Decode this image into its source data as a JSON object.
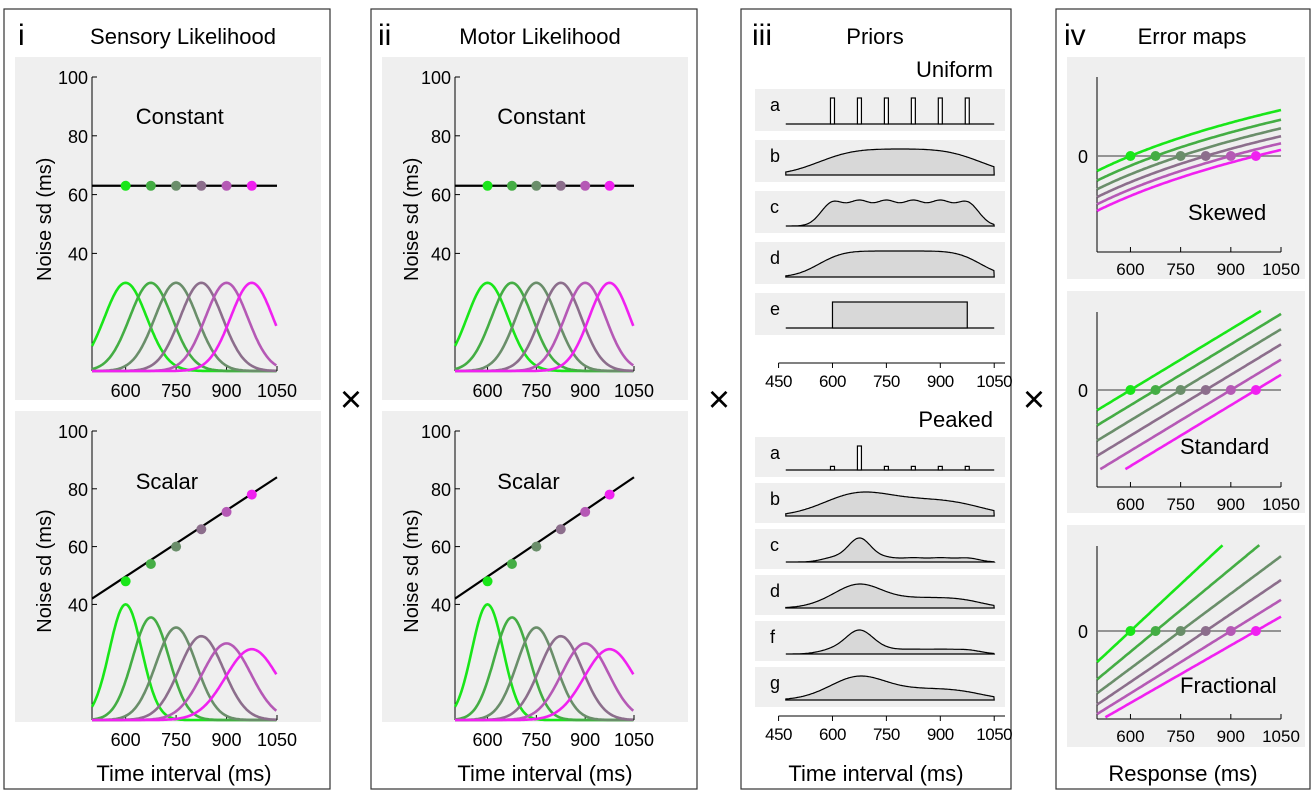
{
  "times_symbol": "×",
  "panels": {
    "i": {
      "numeral": "i",
      "title": "Sensory Likelihood",
      "xlabel": "Time interval (ms)"
    },
    "ii": {
      "numeral": "ii",
      "title": "Motor Likelihood",
      "xlabel": "Time interval (ms)"
    },
    "iii": {
      "numeral": "iii",
      "title": "Priors",
      "xlabel": "Time interval (ms)"
    },
    "iv": {
      "numeral": "iv",
      "title": "Error maps",
      "xlabel": "Response (ms)"
    }
  },
  "colors": [
    "#19e619",
    "#44ad44",
    "#6a8e6a",
    "#8c6e8c",
    "#b559b5",
    "#f021f0"
  ],
  "chart_data": [
    {
      "id": "sensory-constant",
      "type": "line",
      "panel": "i",
      "label": "Constant",
      "ylabel": "Noise sd (ms)",
      "yticks": [
        40,
        60,
        80,
        100
      ],
      "xticks": [
        600,
        750,
        900,
        1050
      ],
      "ylim": [
        0,
        100
      ],
      "xlim": [
        500,
        1050
      ],
      "line": [
        {
          "x": 500,
          "y": 63
        },
        {
          "x": 1050,
          "y": 63
        }
      ],
      "points": [
        {
          "x": 600,
          "y": 63
        },
        {
          "x": 675,
          "y": 63
        },
        {
          "x": 750,
          "y": 63
        },
        {
          "x": 825,
          "y": 63
        },
        {
          "x": 900,
          "y": 63
        },
        {
          "x": 975,
          "y": 63
        }
      ],
      "gaussians": {
        "means": [
          600,
          675,
          750,
          825,
          900,
          975
        ],
        "sd": [
          63,
          63,
          63,
          63,
          63,
          63
        ],
        "peak": [
          30,
          30,
          30,
          30,
          30,
          30
        ]
      }
    },
    {
      "id": "sensory-scalar",
      "type": "line",
      "panel": "i",
      "label": "Scalar",
      "ylabel": "Noise sd (ms)",
      "yticks": [
        40,
        60,
        80,
        100
      ],
      "xticks": [
        600,
        750,
        900,
        1050
      ],
      "ylim": [
        0,
        100
      ],
      "xlim": [
        500,
        1050
      ],
      "line": [
        {
          "x": 500,
          "y": 42
        },
        {
          "x": 1050,
          "y": 84
        }
      ],
      "points": [
        {
          "x": 600,
          "y": 48
        },
        {
          "x": 675,
          "y": 54
        },
        {
          "x": 750,
          "y": 60
        },
        {
          "x": 825,
          "y": 66
        },
        {
          "x": 900,
          "y": 72
        },
        {
          "x": 975,
          "y": 78
        }
      ],
      "gaussians": {
        "means": [
          600,
          675,
          750,
          825,
          900,
          975
        ],
        "sd": [
          48,
          54,
          60,
          66,
          72,
          78
        ],
        "peak": [
          40,
          35.5,
          32,
          29,
          26.5,
          24.5
        ]
      }
    },
    {
      "id": "motor-constant",
      "type": "line",
      "panel": "ii",
      "label": "Constant",
      "ylabel": "Noise sd (ms)",
      "yticks": [
        40,
        60,
        80,
        100
      ],
      "xticks": [
        600,
        750,
        900,
        1050
      ],
      "ylim": [
        0,
        100
      ],
      "xlim": [
        500,
        1050
      ],
      "line": [
        {
          "x": 500,
          "y": 63
        },
        {
          "x": 1050,
          "y": 63
        }
      ],
      "points": [
        {
          "x": 600,
          "y": 63
        },
        {
          "x": 675,
          "y": 63
        },
        {
          "x": 750,
          "y": 63
        },
        {
          "x": 825,
          "y": 63
        },
        {
          "x": 900,
          "y": 63
        },
        {
          "x": 975,
          "y": 63
        }
      ],
      "gaussians": {
        "means": [
          600,
          675,
          750,
          825,
          900,
          975
        ],
        "sd": [
          63,
          63,
          63,
          63,
          63,
          63
        ],
        "peak": [
          30,
          30,
          30,
          30,
          30,
          30
        ]
      }
    },
    {
      "id": "motor-scalar",
      "type": "line",
      "panel": "ii",
      "label": "Scalar",
      "ylabel": "Noise sd (ms)",
      "yticks": [
        40,
        60,
        80,
        100
      ],
      "xticks": [
        600,
        750,
        900,
        1050
      ],
      "ylim": [
        0,
        100
      ],
      "xlim": [
        500,
        1050
      ],
      "line": [
        {
          "x": 500,
          "y": 42
        },
        {
          "x": 1050,
          "y": 84
        }
      ],
      "points": [
        {
          "x": 600,
          "y": 48
        },
        {
          "x": 675,
          "y": 54
        },
        {
          "x": 750,
          "y": 60
        },
        {
          "x": 825,
          "y": 66
        },
        {
          "x": 900,
          "y": 72
        },
        {
          "x": 975,
          "y": 78
        }
      ],
      "gaussians": {
        "means": [
          600,
          675,
          750,
          825,
          900,
          975
        ],
        "sd": [
          48,
          54,
          60,
          66,
          72,
          78
        ],
        "peak": [
          40,
          35.5,
          32,
          29,
          26.5,
          24.5
        ]
      }
    },
    {
      "id": "priors-uniform",
      "type": "area",
      "panel": "iii",
      "label": "Uniform",
      "xticks": [
        450,
        600,
        750,
        900,
        1050
      ],
      "xlim": [
        390,
        1080
      ],
      "priors": [
        {
          "label": "a",
          "kind": "spikes",
          "x": [
            600,
            675,
            750,
            825,
            900,
            975
          ],
          "heights": [
            1,
            1,
            1,
            1,
            1,
            1
          ]
        },
        {
          "label": "b",
          "kind": "mixture",
          "centers": [
            600,
            675,
            750,
            825,
            900,
            975
          ],
          "weights": [
            1,
            1,
            1,
            1,
            1,
            1
          ],
          "sd": 80
        },
        {
          "label": "c",
          "kind": "mixture",
          "centers": [
            600,
            675,
            750,
            825,
            900,
            975
          ],
          "weights": [
            1,
            1,
            1,
            1,
            1,
            1
          ],
          "sd": 32
        },
        {
          "label": "d",
          "kind": "mixture",
          "centers": [
            600,
            675,
            750,
            825,
            900,
            975
          ],
          "weights": [
            1,
            1,
            1,
            1,
            1,
            1
          ],
          "sd": 58
        },
        {
          "label": "e",
          "kind": "box",
          "x": [
            600,
            975
          ]
        }
      ]
    },
    {
      "id": "priors-peaked",
      "type": "area",
      "panel": "iii",
      "label": "Peaked",
      "xticks": [
        450,
        600,
        750,
        900,
        1050
      ],
      "xlim": [
        390,
        1080
      ],
      "priors": [
        {
          "label": "a",
          "kind": "spikes",
          "x": [
            600,
            675,
            750,
            825,
            900,
            975
          ],
          "heights": [
            0.15,
            1,
            0.15,
            0.15,
            0.15,
            0.15
          ]
        },
        {
          "label": "b",
          "kind": "mixture",
          "centers": [
            600,
            675,
            750,
            825,
            900,
            975
          ],
          "weights": [
            1,
            2.2,
            1,
            1,
            1,
            1
          ],
          "sd": 80
        },
        {
          "label": "c",
          "kind": "mixture",
          "centers": [
            600,
            675,
            750,
            825,
            900,
            975
          ],
          "weights": [
            1,
            6,
            1,
            1,
            1,
            1
          ],
          "sd": 32
        },
        {
          "label": "d",
          "kind": "mixture",
          "centers": [
            600,
            675,
            750,
            825,
            900,
            975
          ],
          "weights": [
            1,
            3.5,
            1,
            1,
            1,
            1
          ],
          "sd": 58
        },
        {
          "label": "f",
          "kind": "mixture",
          "centers": [
            600,
            675,
            750,
            825,
            900,
            975
          ],
          "weights": [
            1,
            6,
            1,
            1,
            1,
            1
          ],
          "sd": 38
        },
        {
          "label": "g",
          "kind": "mixture",
          "centers": [
            600,
            675,
            750,
            825,
            900,
            975
          ],
          "weights": [
            1,
            3.5,
            1,
            1,
            1,
            1
          ],
          "sd": 68
        }
      ]
    },
    {
      "id": "error-skewed",
      "type": "line",
      "panel": "iv",
      "label": "Skewed",
      "yticks": [
        0
      ],
      "xticks": [
        600,
        750,
        900,
        1050
      ],
      "xlim": [
        500,
        1050
      ],
      "ylim": [
        -5,
        5
      ],
      "zero_crossings": [
        600,
        675,
        750,
        825,
        900,
        975
      ],
      "shape": "log"
    },
    {
      "id": "error-standard",
      "type": "line",
      "panel": "iv",
      "label": "Standard",
      "yticks": [
        0
      ],
      "xticks": [
        600,
        750,
        900,
        1050
      ],
      "xlim": [
        500,
        1050
      ],
      "ylim": [
        -5,
        5
      ],
      "zero_crossings": [
        600,
        675,
        750,
        825,
        900,
        975
      ],
      "shape": "linear"
    },
    {
      "id": "error-fractional",
      "type": "line",
      "panel": "iv",
      "label": "Fractional",
      "yticks": [
        0
      ],
      "xticks": [
        600,
        750,
        900,
        1050
      ],
      "xlim": [
        500,
        1050
      ],
      "ylim": [
        -5,
        5
      ],
      "zero_crossings": [
        600,
        675,
        750,
        825,
        900,
        975
      ],
      "shape": "fractional"
    }
  ]
}
